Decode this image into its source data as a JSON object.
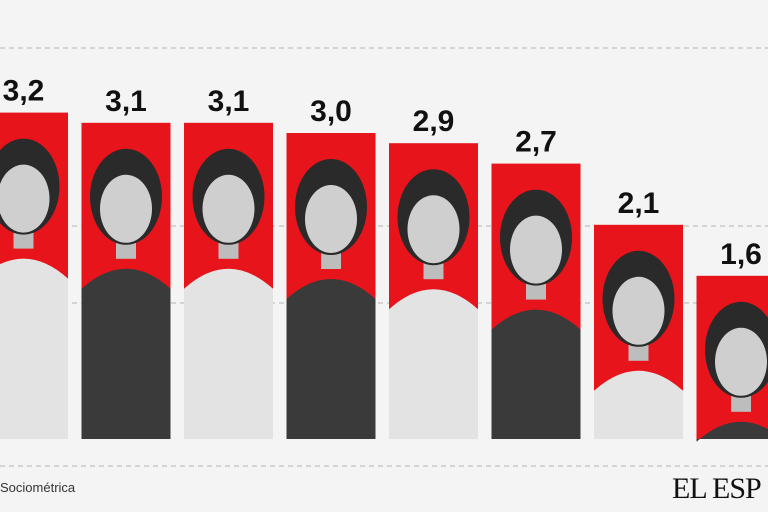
{
  "chart_data": {
    "type": "bar",
    "categories": [
      "",
      "",
      "",
      "",
      "",
      "",
      "",
      ""
    ],
    "values": [
      3.2,
      3.1,
      3.1,
      3.0,
      2.9,
      2.7,
      2.1,
      1.6
    ],
    "value_labels": [
      "3,2",
      "3,1",
      "3,1",
      "3,0",
      "2,9",
      "2,7",
      "2,1",
      "1,6"
    ],
    "title": "",
    "xlabel": "",
    "ylabel": "",
    "ylim": [
      0,
      3.6
    ],
    "grid": true,
    "bar_color": "#e8141b",
    "photo_style": "grayscale portrait inside each bar"
  },
  "footer": {
    "source": "Sociométrica",
    "logo": "EL ESP"
  }
}
